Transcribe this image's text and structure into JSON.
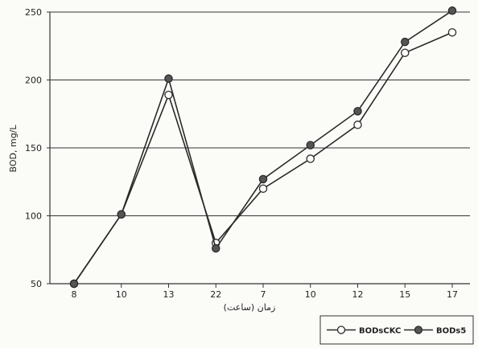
{
  "chart_data": {
    "type": "line",
    "categories": [
      "8",
      "10",
      "13",
      "22",
      "7",
      "10",
      "12",
      "15",
      "17"
    ],
    "xlabel": "زمان (ساعت)",
    "ylabel": "BOD, mg/L",
    "ylim": [
      50,
      250
    ],
    "yticks": [
      "50",
      "100",
      "150",
      "200",
      "250"
    ],
    "grid": "horizontal",
    "legend_position": "bottom-right",
    "series": [
      {
        "name": "BODsCKC",
        "marker": "open-circle",
        "values": [
          50,
          101,
          189,
          80,
          120,
          142,
          167,
          220,
          235
        ]
      },
      {
        "name": "BODs5",
        "marker": "filled-circle",
        "values": [
          50,
          101,
          201,
          76,
          127,
          152,
          177,
          228,
          251
        ]
      }
    ]
  }
}
